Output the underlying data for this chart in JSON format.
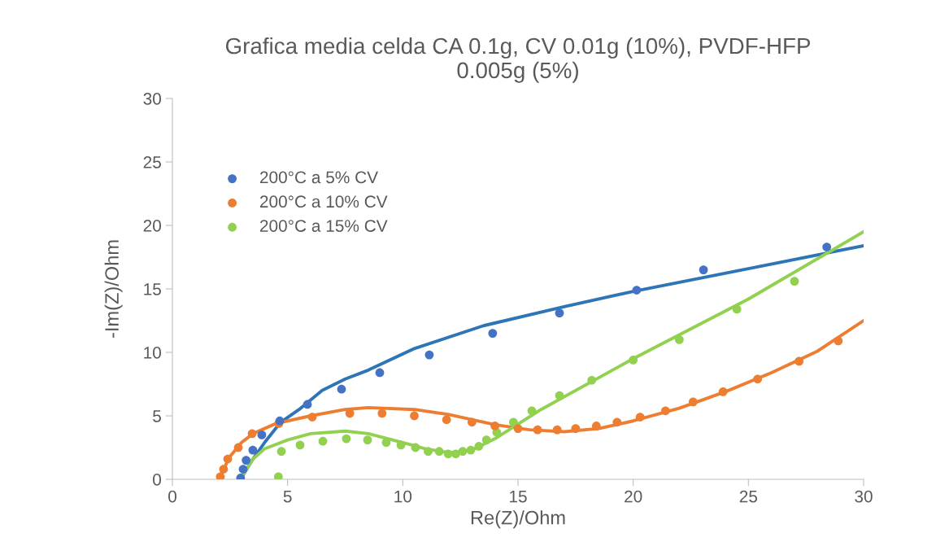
{
  "chart_data": {
    "type": "scatter",
    "title": "Grafica media celda CA 0.1g, CV 0.01g (10%), PVDF-HFP\n0.005g (5%)",
    "xlabel": "Re(Z)/Ohm",
    "ylabel": "-Im(Z)/Ohm",
    "xlim": [
      0,
      30
    ],
    "xticks": [
      0,
      5,
      10,
      15,
      20,
      25,
      30
    ],
    "ylim": [
      0,
      30
    ],
    "yticks": [
      0,
      5,
      10,
      15,
      20,
      25,
      30
    ],
    "grid": false,
    "legend": "top left",
    "series": [
      {
        "name": "200°C a 5% CV",
        "color": "#4472c4",
        "marker": "circle",
        "x": [
          2.96,
          3.07,
          3.2,
          3.49,
          3.88,
          4.66,
          5.86,
          7.34,
          9.0,
          11.15,
          13.9,
          16.8,
          20.15,
          23.05,
          28.4
        ],
        "values": [
          0.1,
          0.8,
          1.5,
          2.3,
          3.5,
          4.6,
          5.9,
          7.1,
          8.4,
          9.8,
          11.5,
          13.1,
          14.9,
          16.5,
          18.3
        ]
      },
      {
        "name": "200°C a 10% CV",
        "color": "#ed7d31",
        "marker": "circle",
        "x": [
          2.08,
          2.22,
          2.4,
          2.86,
          3.46,
          4.62,
          6.07,
          7.7,
          9.1,
          10.5,
          11.9,
          13.0,
          14.0,
          15.0,
          15.85,
          16.7,
          17.5,
          18.4,
          19.3,
          20.3,
          21.4,
          22.6,
          23.9,
          25.4,
          27.2,
          28.9
        ],
        "values": [
          0.2,
          0.8,
          1.6,
          2.5,
          3.6,
          4.4,
          4.9,
          5.2,
          5.2,
          5.0,
          4.7,
          4.5,
          4.2,
          4.0,
          3.9,
          3.9,
          4.0,
          4.2,
          4.5,
          4.9,
          5.4,
          6.1,
          6.9,
          7.9,
          9.3,
          10.9
        ]
      },
      {
        "name": "200°C a 15% CV",
        "color": "#92d050",
        "marker": "circle",
        "x": [
          4.6,
          4.73,
          5.54,
          6.53,
          7.55,
          8.47,
          9.28,
          9.92,
          10.55,
          11.1,
          11.58,
          11.97,
          12.3,
          12.6,
          12.95,
          13.3,
          13.63,
          14.08,
          14.8,
          15.6,
          16.8,
          18.2,
          20.0,
          22.0,
          24.5,
          27.0
        ],
        "values": [
          0.2,
          2.2,
          2.7,
          3.0,
          3.2,
          3.1,
          2.9,
          2.7,
          2.5,
          2.2,
          2.2,
          2.0,
          2.0,
          2.2,
          2.3,
          2.6,
          3.1,
          3.7,
          4.5,
          5.4,
          6.6,
          7.8,
          9.4,
          11.0,
          13.4,
          15.6
        ]
      },
      {
        "color": "#2e75b6",
        "type": "line",
        "x": [
          2.96,
          3.46,
          4.0,
          4.7,
          5.5,
          6.5,
          7.5,
          8.5,
          10.5,
          13.5,
          17.0,
          20.0,
          25.0,
          30.0
        ],
        "values": [
          0.0,
          1.5,
          2.9,
          4.5,
          5.5,
          7.0,
          7.9,
          8.6,
          10.3,
          12.1,
          13.6,
          14.8,
          16.6,
          18.4
        ]
      },
      {
        "color": "#ed7d31",
        "type": "line",
        "x": [
          2.0,
          2.5,
          3.0,
          3.5,
          4.5,
          6.0,
          7.5,
          8.5,
          10.5,
          12.0,
          14.0,
          15.5,
          17.0,
          18.5,
          20.0,
          22.0,
          24.0,
          26.0,
          28.0,
          30.0
        ],
        "values": [
          0.0,
          1.8,
          2.9,
          3.6,
          4.4,
          5.0,
          5.5,
          5.65,
          5.5,
          5.1,
          4.3,
          3.9,
          3.75,
          4.0,
          4.6,
          5.6,
          6.9,
          8.4,
          10.1,
          12.5
        ]
      },
      {
        "color": "#92d050",
        "type": "line",
        "x": [
          3.1,
          3.5,
          4.0,
          5.0,
          6.0,
          7.5,
          8.5,
          10.0,
          11.0,
          12.0,
          13.0,
          14.0,
          16.0,
          20.0,
          25.0,
          30.0
        ],
        "values": [
          0.45,
          1.6,
          2.4,
          3.1,
          3.6,
          3.8,
          3.6,
          2.9,
          2.4,
          2.1,
          2.3,
          3.2,
          5.5,
          9.5,
          14.2,
          19.5
        ]
      }
    ]
  }
}
